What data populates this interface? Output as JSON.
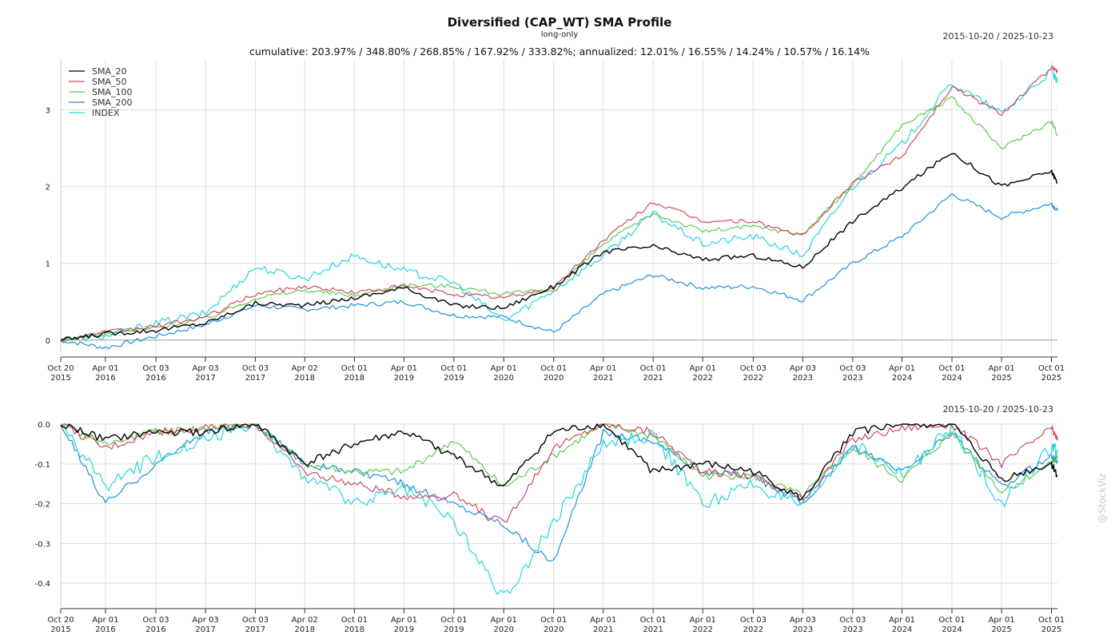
{
  "header": {
    "title": "Diversified (CAP_WT) SMA Profile",
    "subtitle": "long-only",
    "date_range": "2015-10-20 / 2025-10-23",
    "stats": "cumulative: 203.97% / 348.80% / 268.85% / 167.92% / 333.82%; annualized: 12.01% / 16.55% / 14.24% / 10.57% / 16.14%",
    "watermark": "@StockViz"
  },
  "colors": {
    "SMA_20": "#000000",
    "SMA_50": "#d1495b",
    "SMA_100": "#5cc94f",
    "SMA_200": "#1f8fdc",
    "INDEX": "#22d5e0",
    "grid": "#dddddd"
  },
  "chart_data": [
    {
      "type": "line",
      "panel": "cumulative",
      "x_ticks": [
        "Oct 20\n2015",
        "Apr 01\n2016",
        "Oct 03\n2016",
        "Apr 03\n2017",
        "Oct 03\n2017",
        "Apr 02\n2018",
        "Oct 01\n2018",
        "Apr 01\n2019",
        "Oct 01\n2019",
        "Apr 01\n2020",
        "Oct 01\n2020",
        "Apr 01\n2021",
        "Oct 01\n2021",
        "Apr 01\n2022",
        "Oct 03\n2022",
        "Apr 03\n2023",
        "Oct 03\n2023",
        "Apr 01\n2024",
        "Oct 01\n2024",
        "Apr 01\n2025",
        "Oct 01\n2025"
      ],
      "y_ticks": [
        0,
        1,
        2,
        3
      ],
      "ylim": [
        -0.2,
        3.65
      ],
      "grid": true,
      "legend": "top-left",
      "x": [
        "2015-10-20",
        "2016-04-01",
        "2016-10-03",
        "2017-04-03",
        "2017-10-03",
        "2018-04-02",
        "2018-10-01",
        "2019-04-01",
        "2019-10-01",
        "2020-04-01",
        "2020-10-01",
        "2021-04-01",
        "2021-10-01",
        "2022-04-01",
        "2022-10-03",
        "2023-04-03",
        "2023-10-03",
        "2024-04-01",
        "2024-10-01",
        "2025-04-01",
        "2025-10-01",
        "2025-10-23"
      ],
      "series": [
        {
          "name": "SMA_20",
          "values": [
            0.0,
            0.08,
            0.13,
            0.22,
            0.48,
            0.45,
            0.55,
            0.68,
            0.45,
            0.42,
            0.7,
            1.15,
            1.22,
            1.05,
            1.1,
            0.95,
            1.55,
            1.98,
            2.45,
            2.0,
            2.2,
            2.05
          ]
        },
        {
          "name": "SMA_50",
          "values": [
            0.0,
            0.1,
            0.18,
            0.3,
            0.6,
            0.7,
            0.62,
            0.7,
            0.6,
            0.55,
            0.68,
            1.3,
            1.8,
            1.55,
            1.55,
            1.35,
            2.05,
            2.4,
            3.3,
            2.95,
            3.55,
            3.5
          ]
        },
        {
          "name": "SMA_100",
          "values": [
            0.0,
            0.08,
            0.16,
            0.28,
            0.55,
            0.65,
            0.58,
            0.72,
            0.7,
            0.6,
            0.65,
            1.25,
            1.65,
            1.42,
            1.48,
            1.38,
            2.02,
            2.8,
            3.15,
            2.5,
            2.85,
            2.68
          ]
        },
        {
          "name": "SMA_200",
          "values": [
            0.0,
            -0.1,
            0.05,
            0.2,
            0.45,
            0.4,
            0.45,
            0.5,
            0.32,
            0.3,
            0.1,
            0.6,
            0.85,
            0.68,
            0.7,
            0.52,
            1.0,
            1.35,
            1.9,
            1.6,
            1.78,
            1.68
          ]
        },
        {
          "name": "INDEX",
          "values": [
            0.0,
            0.05,
            0.22,
            0.35,
            0.95,
            0.8,
            1.1,
            0.9,
            0.75,
            0.25,
            0.65,
            1.1,
            1.65,
            1.25,
            1.35,
            1.1,
            2.0,
            2.55,
            3.35,
            2.95,
            3.5,
            3.35
          ]
        }
      ]
    },
    {
      "type": "line",
      "panel": "drawdown",
      "x_ticks": [
        "Oct 20\n2015",
        "Apr 01\n2016",
        "Oct 03\n2016",
        "Apr 03\n2017",
        "Oct 03\n2017",
        "Apr 02\n2018",
        "Oct 01\n2018",
        "Apr 01\n2019",
        "Oct 01\n2019",
        "Apr 01\n2020",
        "Oct 01\n2020",
        "Apr 01\n2021",
        "Oct 01\n2021",
        "Apr 01\n2022",
        "Oct 03\n2022",
        "Apr 03\n2023",
        "Oct 03\n2023",
        "Apr 01\n2024",
        "Oct 01\n2024",
        "Apr 01\n2025",
        "Oct 01\n2025"
      ],
      "y_ticks": [
        0.0,
        -0.1,
        -0.2,
        -0.3,
        -0.4
      ],
      "ylim": [
        -0.46,
        0.0
      ],
      "grid": true,
      "x": [
        "2015-10-20",
        "2016-04-01",
        "2016-10-03",
        "2017-04-03",
        "2017-10-03",
        "2018-04-02",
        "2018-10-01",
        "2019-04-01",
        "2019-10-01",
        "2020-04-01",
        "2020-10-01",
        "2021-04-01",
        "2021-10-01",
        "2022-04-01",
        "2022-10-03",
        "2023-04-03",
        "2023-10-03",
        "2024-04-01",
        "2024-10-01",
        "2025-04-01",
        "2025-10-01",
        "2025-10-23"
      ],
      "series": [
        {
          "name": "SMA_20",
          "values": [
            0.0,
            -0.04,
            -0.02,
            -0.02,
            0.0,
            -0.1,
            -0.05,
            -0.02,
            -0.08,
            -0.16,
            -0.02,
            0.0,
            -0.12,
            -0.1,
            -0.12,
            -0.19,
            -0.02,
            0.0,
            0.0,
            -0.14,
            -0.1,
            -0.13
          ]
        },
        {
          "name": "SMA_50",
          "values": [
            0.0,
            -0.06,
            -0.02,
            -0.01,
            0.0,
            -0.12,
            -0.15,
            -0.18,
            -0.18,
            -0.25,
            -0.06,
            0.0,
            -0.02,
            -0.12,
            -0.13,
            -0.19,
            -0.04,
            -0.01,
            0.0,
            -0.1,
            -0.01,
            -0.04
          ]
        },
        {
          "name": "SMA_100",
          "values": [
            0.0,
            -0.05,
            -0.02,
            -0.01,
            0.0,
            -0.1,
            -0.12,
            -0.12,
            -0.04,
            -0.16,
            -0.08,
            0.0,
            -0.03,
            -0.13,
            -0.13,
            -0.18,
            -0.06,
            -0.14,
            -0.02,
            -0.17,
            -0.1,
            -0.08
          ]
        },
        {
          "name": "SMA_200",
          "values": [
            0.0,
            -0.2,
            -0.1,
            -0.02,
            0.0,
            -0.1,
            -0.12,
            -0.15,
            -0.2,
            -0.25,
            -0.35,
            -0.02,
            -0.04,
            -0.12,
            -0.13,
            -0.2,
            -0.06,
            -0.12,
            -0.02,
            -0.16,
            -0.08,
            -0.09
          ]
        },
        {
          "name": "INDEX",
          "values": [
            0.0,
            -0.16,
            -0.08,
            -0.04,
            0.0,
            -0.13,
            -0.2,
            -0.16,
            -0.24,
            -0.44,
            -0.25,
            -0.05,
            -0.03,
            -0.2,
            -0.15,
            -0.21,
            -0.05,
            -0.13,
            -0.01,
            -0.2,
            -0.06,
            -0.07
          ]
        }
      ]
    }
  ]
}
